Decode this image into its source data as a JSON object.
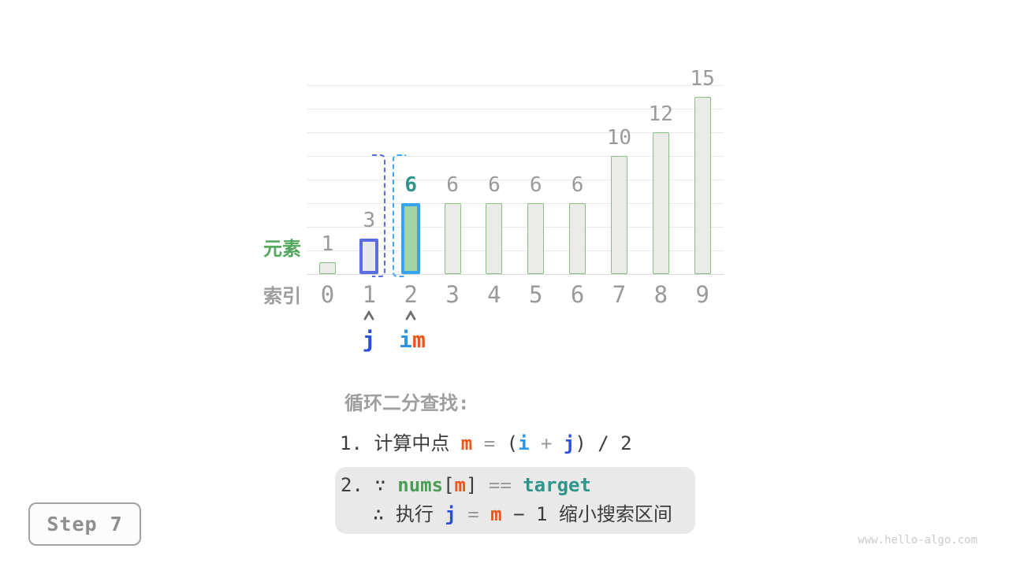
{
  "watermark": "www.hello-algo.com",
  "step_box": {
    "label": "Step 7"
  },
  "axis_labels": {
    "elements": "元素",
    "indices": "索引"
  },
  "pointers": {
    "j": "j",
    "i": "i",
    "m": "m"
  },
  "colors": {
    "grey_text": "#9e9e9e",
    "dark_text": "#3c3c3c",
    "value_label": "#9a9a9a",
    "orange_m": "#ee5518",
    "azure_i": "#2c95e4",
    "indigo_j": "#2b4fdc",
    "teal_target": "#2e958a",
    "green_nums": "#4a9d55",
    "green_elements_label": "#54a65c",
    "bar_fill": "#eaeae8",
    "bar_border": "#8cbe86",
    "j_bar_border": "#5b6ee1",
    "j_bar_fill": "#e7e7ec",
    "m_bar_border": "#35a3ee",
    "m_bar_fill": "#a3d4a4",
    "bracket_close": "#5b6ee1",
    "bracket_open": "#3fa7f5"
  },
  "chart_data": {
    "type": "bar",
    "title": "",
    "xlabel": "索引",
    "ylabel": "元素",
    "categories": [
      "0",
      "1",
      "2",
      "3",
      "4",
      "5",
      "6",
      "7",
      "8",
      "9"
    ],
    "values": [
      1,
      3,
      6,
      6,
      6,
      6,
      6,
      10,
      12,
      15
    ],
    "states": [
      "normal",
      "j",
      "m",
      "normal",
      "normal",
      "normal",
      "normal",
      "normal",
      "normal",
      "normal"
    ],
    "ylim": [
      0,
      16
    ],
    "grid": "horizontal every 2 units",
    "legend": "none",
    "annotations": {
      "highlighted_value_index": 2,
      "dashed_interval_between": [
        1,
        2
      ],
      "pointer_j_at_index": 1,
      "pointer_i_at_index": 2,
      "pointer_m_at_index": 2
    }
  },
  "caption": {
    "heading": "循环二分查找:",
    "line1": {
      "prefix": "1. 计算中点 ",
      "m": "m",
      "eq": " = ",
      "open": "(",
      "i": "i",
      "plus": " + ",
      "j": "j",
      "close": ") / 2"
    },
    "box": {
      "l1_num": "2. ",
      "l1_because": "∵ ",
      "l1_nums": "nums",
      "l1_lb": "[",
      "l1_m": "m",
      "l1_rb": "]",
      "l1_eq": " == ",
      "l1_target": "target",
      "l2_therefore": "∴ 执行 ",
      "l2_j": "j",
      "l2_eq": " = ",
      "l2_m": "m",
      "l2_rest": " − 1 缩小搜索区间"
    }
  }
}
